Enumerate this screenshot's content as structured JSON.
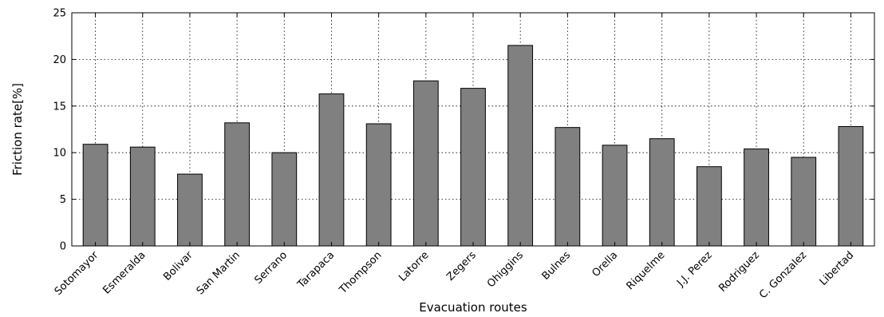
{
  "chart_data": {
    "type": "bar",
    "title": "",
    "xlabel": "Evacuation routes",
    "ylabel": "Friction rate[%]",
    "ylim": [
      0,
      25
    ],
    "yticks": [
      0,
      5,
      10,
      15,
      20,
      25
    ],
    "grid": true,
    "categories": [
      "Sotomayor",
      "Esmeralda",
      "Bolivar",
      "San Martin",
      "Serrano",
      "Tarapaca",
      "Thompson",
      "Latorre",
      "Zegers",
      "Ohiggins",
      "Bulnes",
      "Orella",
      "Riquelme",
      "J.J. Perez",
      "Rodriguez",
      "C. Gonzalez",
      "Libertad"
    ],
    "values": [
      10.9,
      10.6,
      7.7,
      13.2,
      10.0,
      16.3,
      13.1,
      17.7,
      16.9,
      21.5,
      12.7,
      10.8,
      11.5,
      8.5,
      10.4,
      9.5,
      12.8
    ],
    "colors": {
      "bar": "#808080",
      "edge": "#000000"
    }
  }
}
